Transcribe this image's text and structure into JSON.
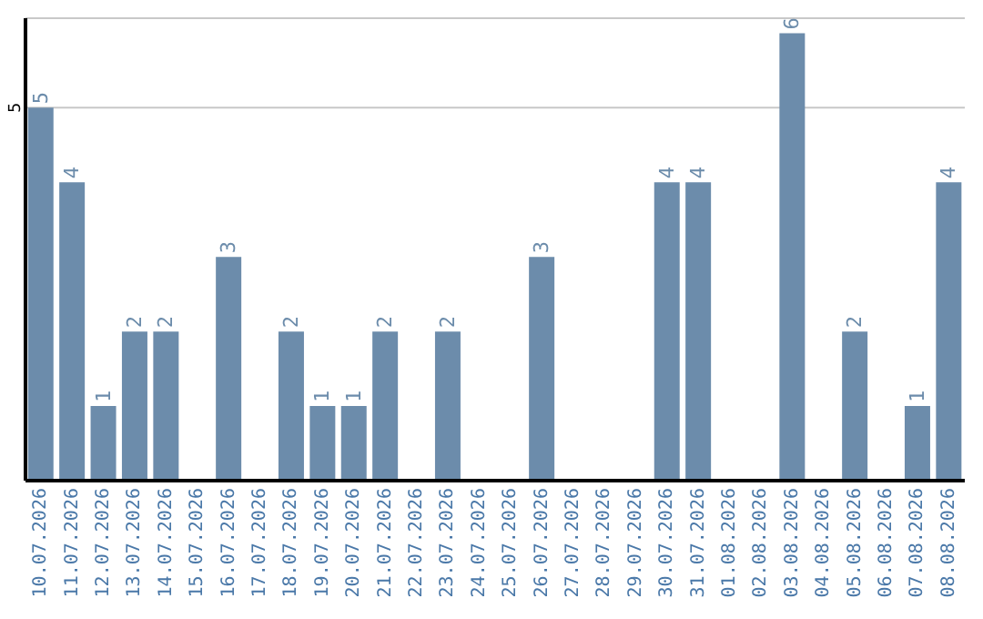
{
  "chart_data": {
    "type": "bar",
    "categories": [
      "10.07.2026",
      "11.07.2026",
      "12.07.2026",
      "13.07.2026",
      "14.07.2026",
      "15.07.2026",
      "16.07.2026",
      "17.07.2026",
      "18.07.2026",
      "19.07.2026",
      "20.07.2026",
      "21.07.2026",
      "22.07.2026",
      "23.07.2026",
      "24.07.2026",
      "25.07.2026",
      "26.07.2026",
      "27.07.2026",
      "28.07.2026",
      "29.07.2026",
      "30.07.2026",
      "31.07.2026",
      "01.08.2026",
      "02.08.2026",
      "03.08.2026",
      "04.08.2026",
      "05.08.2026",
      "06.08.2026",
      "07.08.2026",
      "08.08.2026"
    ],
    "values": [
      5,
      4,
      1,
      2,
      2,
      0,
      3,
      0,
      2,
      1,
      1,
      2,
      0,
      2,
      0,
      0,
      3,
      0,
      0,
      0,
      4,
      4,
      0,
      0,
      6,
      0,
      2,
      0,
      1,
      4
    ],
    "value_labels": [
      "5",
      "4",
      "1",
      "2",
      "2",
      null,
      "3",
      null,
      "2",
      "1",
      "1",
      "2",
      null,
      "2",
      null,
      null,
      "3",
      null,
      null,
      null,
      "4",
      "4",
      null,
      null,
      "6",
      null,
      "2",
      null,
      "1",
      "4"
    ],
    "color": "#6c8cab",
    "ylim": [
      0,
      6.2
    ],
    "yticks": [
      5
    ],
    "grid": "y"
  }
}
